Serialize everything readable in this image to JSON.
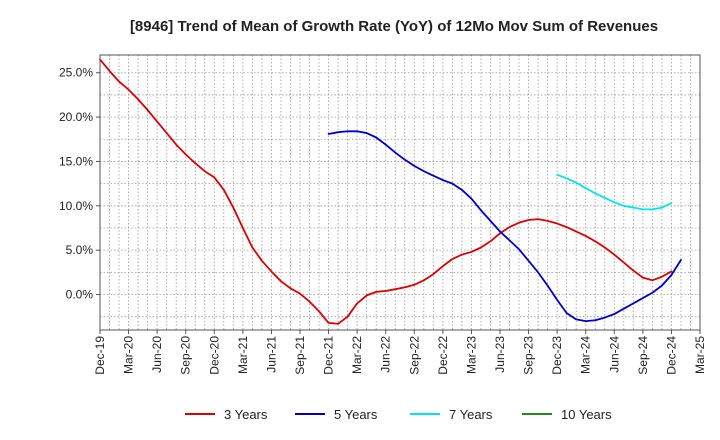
{
  "chart_data": {
    "type": "line",
    "title": "[8946]  Trend of Mean of Growth Rate (YoY) of 12Mo Mov Sum of Revenues",
    "xlabel": "",
    "ylabel": "",
    "ylim": [
      -4,
      27
    ],
    "grid": true,
    "legend_position": "bottom",
    "x_ticks": [
      "Dec-19",
      "Mar-20",
      "Jun-20",
      "Sep-20",
      "Dec-20",
      "Mar-21",
      "Jun-21",
      "Sep-21",
      "Dec-21",
      "Mar-22",
      "Jun-22",
      "Sep-22",
      "Dec-22",
      "Mar-23",
      "Jun-23",
      "Sep-23",
      "Dec-23",
      "Mar-24",
      "Jun-24",
      "Sep-24",
      "Dec-24",
      "Mar-25"
    ],
    "y_ticks": [
      {
        "value": 0,
        "label": "0.0%"
      },
      {
        "value": 5,
        "label": "5.0%"
      },
      {
        "value": 10,
        "label": "10.0%"
      },
      {
        "value": 15,
        "label": "15.0%"
      },
      {
        "value": 20,
        "label": "20.0%"
      },
      {
        "value": 25,
        "label": "25.0%"
      }
    ],
    "series": [
      {
        "name": "3 Years",
        "color": "#dd0000",
        "start_index": 0,
        "values": [
          26.5,
          25.2,
          24.0,
          23.1,
          22.0,
          20.8,
          19.5,
          18.2,
          16.9,
          15.8,
          14.8,
          13.9,
          13.2,
          11.8,
          9.8,
          7.5,
          5.3,
          3.8,
          2.6,
          1.5,
          0.7,
          0.1,
          -0.8,
          -1.9,
          -3.2,
          -3.3,
          -2.5,
          -1.0,
          -0.1,
          0.3,
          0.4,
          0.6,
          0.8,
          1.1,
          1.6,
          2.3,
          3.2,
          4.0,
          4.5,
          4.8,
          5.3,
          6.0,
          6.9,
          7.6,
          8.1,
          8.4,
          8.5,
          8.3,
          8.0,
          7.6,
          7.1,
          6.6,
          6.0,
          5.3,
          4.5,
          3.6,
          2.7,
          1.9,
          1.6,
          2.0,
          2.6
        ]
      },
      {
        "name": "5 Years",
        "color": "#0000cc",
        "start_index": 24,
        "values": [
          18.1,
          18.3,
          18.4,
          18.4,
          18.2,
          17.7,
          16.9,
          16.0,
          15.2,
          14.5,
          13.9,
          13.4,
          12.9,
          12.5,
          11.8,
          10.8,
          9.5,
          8.3,
          7.1,
          6.1,
          5.1,
          3.8,
          2.5,
          1.0,
          -0.6,
          -2.1,
          -2.8,
          -3.0,
          -2.9,
          -2.6,
          -2.2,
          -1.6,
          -1.0,
          -0.4,
          0.2,
          1.0,
          2.2,
          3.9
        ]
      },
      {
        "name": "7 Years",
        "color": "#00e5ee",
        "start_index": 48,
        "values": [
          13.5,
          13.1,
          12.6,
          12.0,
          11.4,
          10.9,
          10.4,
          10.0,
          9.8,
          9.6,
          9.6,
          9.8,
          10.3
        ]
      },
      {
        "name": "10 Years",
        "color": "#228822",
        "start_index": 0,
        "values": []
      }
    ]
  }
}
